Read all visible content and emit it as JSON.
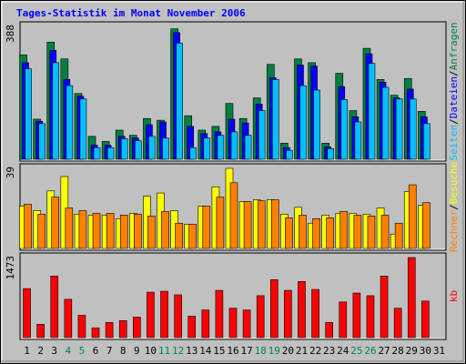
{
  "chart_data": {
    "type": "bar",
    "title": "Tages-Statistik im Monat November 2006",
    "categories": [
      "1",
      "2",
      "3",
      "4",
      "5",
      "6",
      "7",
      "8",
      "9",
      "10",
      "11",
      "12",
      "13",
      "14",
      "15",
      "16",
      "17",
      "18",
      "19",
      "20",
      "21",
      "22",
      "23",
      "24",
      "25",
      "26",
      "27",
      "28",
      "29",
      "30",
      "31"
    ],
    "category_colors": [
      "#000000",
      "#000000",
      "#000000",
      "#00805c",
      "#00805c",
      "#000000",
      "#000000",
      "#000000",
      "#000000",
      "#000000",
      "#00805c",
      "#00805c",
      "#000000",
      "#000000",
      "#000000",
      "#000000",
      "#000000",
      "#00805c",
      "#00805c",
      "#000000",
      "#000000",
      "#000000",
      "#000000",
      "#000000",
      "#00805c",
      "#00805c",
      "#000000",
      "#000000",
      "#000000",
      "#000000",
      "#000000"
    ],
    "legend_separator": "/",
    "panels": [
      {
        "ylim": [
          0,
          388
        ],
        "yticks": [
          388
        ],
        "series": [
          {
            "name": "Anfragen",
            "color": "#008040",
            "values": [
              305,
              117,
              342,
              293,
              192,
              67,
              52,
              85,
              70,
              119,
              114,
              381,
              127,
              85,
              96,
              163,
              119,
              179,
              277,
              47,
              293,
              282,
              47,
              251,
              142,
              324,
              233,
              187,
              236,
              140,
              null
            ]
          },
          {
            "name": "Dateien",
            "color": "#0000ff",
            "values": [
              282,
              111,
              318,
              233,
              184,
              41,
              41,
              67,
              62,
              101,
              109,
              370,
              96,
              75,
              80,
              117,
              106,
              161,
              238,
              34,
              275,
              272,
              36,
              212,
              124,
              308,
              225,
              179,
              205,
              124,
              null
            ]
          },
          {
            "name": "Seiten",
            "color": "#00c0ff",
            "values": [
              264,
              104,
              282,
              215,
              176,
              34,
              34,
              60,
              54,
              67,
              62,
              339,
              34,
              62,
              70,
              80,
              70,
              142,
              233,
              26,
              215,
              202,
              31,
              174,
              109,
              280,
              210,
              176,
              176,
              104,
              null
            ]
          }
        ]
      },
      {
        "ylim": [
          0,
          39
        ],
        "yticks": [
          39
        ],
        "series": [
          {
            "name": "Besuche",
            "color": "#ffff00",
            "values": [
              20.6,
              18.4,
              28,
              35,
              16.7,
              16.2,
              16.2,
              14.5,
              17.1,
              25.4,
              27,
              18.4,
              11.8,
              20.6,
              30,
              39,
              22.8,
              23.7,
              23.7,
              16.7,
              20,
              12.3,
              16.2,
              17.1,
              17.1,
              16.7,
              19.7,
              7,
              27.6,
              21,
              null
            ]
          },
          {
            "name": "Rechner",
            "color": "#ff8000",
            "values": [
              21.5,
              16.7,
              25,
              19.7,
              18.4,
              17.1,
              17.1,
              16.2,
              16.7,
              15.8,
              18,
              12.3,
              11.8,
              20.6,
              25,
              32,
              22.8,
              23.2,
              23.7,
              14.9,
              16.2,
              14.5,
              14.9,
              18,
              16.2,
              15.8,
              16.2,
              12.3,
              31,
              22.3,
              null
            ]
          }
        ]
      },
      {
        "ylim": [
          0,
          1473
        ],
        "yticks": [
          1473
        ],
        "series": [
          {
            "name": "kb",
            "color": "#ff0000",
            "values": [
              902,
              246,
              1132,
              705,
              410,
              180,
              279,
              312,
              377,
              836,
              853,
              787,
              394,
              508,
              869,
              541,
              508,
              771,
              1066,
              869,
              1033,
              886,
              279,
              656,
              820,
              771,
              1132,
              541,
              1473,
              672,
              null
            ]
          }
        ]
      }
    ]
  }
}
